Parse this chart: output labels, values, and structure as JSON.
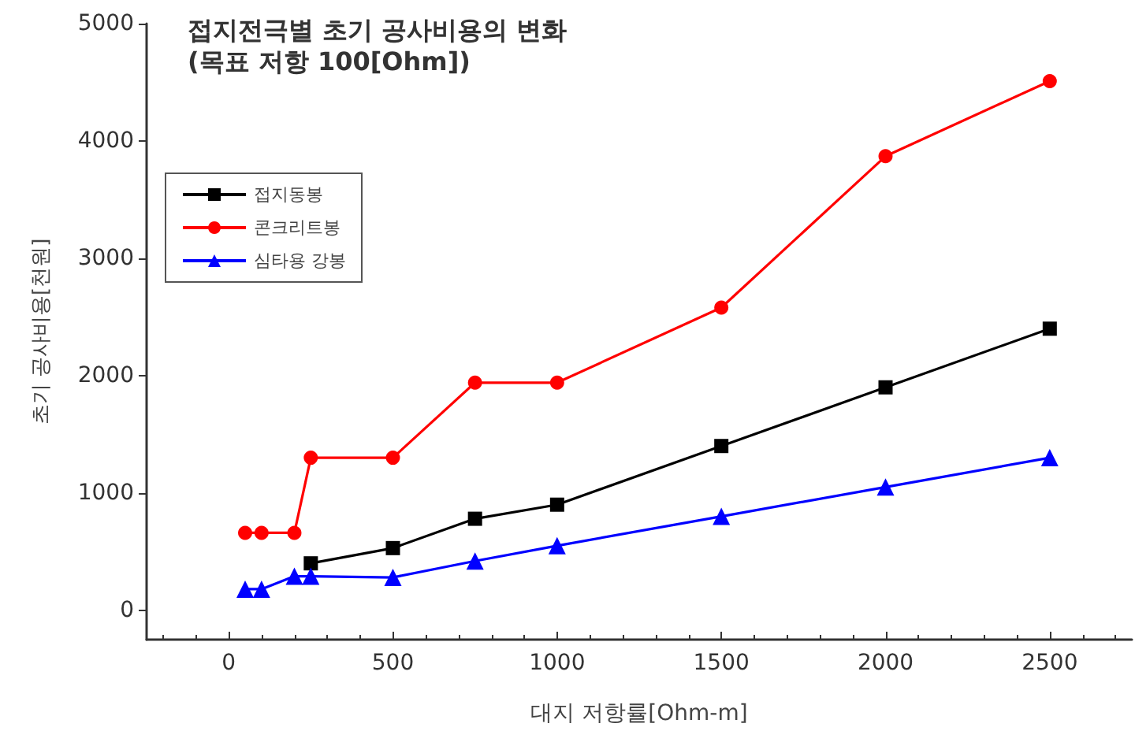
{
  "chart_data": {
    "type": "line",
    "title": "접지전극별 초기 공사비용의 변화",
    "subtitle": "(목표 저항 100[Ohm])",
    "xlabel": "대지 저항률[Ohm-m]",
    "ylabel": "초기 공사비용[천원]",
    "xlim": [
      -250,
      2750
    ],
    "ylim": [
      -250,
      5000
    ],
    "xticks": [
      0,
      500,
      1000,
      1500,
      2000,
      2500
    ],
    "yticks": [
      0,
      1000,
      2000,
      3000,
      4000,
      5000
    ],
    "series": [
      {
        "name": "접지동봉",
        "color": "#000000",
        "marker": "square",
        "x": [
          250,
          500,
          750,
          1000,
          1500,
          2000,
          2500
        ],
        "values": [
          400,
          530,
          780,
          900,
          1400,
          1900,
          2400
        ]
      },
      {
        "name": "콘크리트봉",
        "color": "#ff0000",
        "marker": "circle",
        "x": [
          50,
          100,
          200,
          250,
          500,
          750,
          1000,
          1500,
          2000,
          2500
        ],
        "values": [
          660,
          660,
          660,
          1300,
          1300,
          1940,
          1940,
          2580,
          3870,
          4510
        ]
      },
      {
        "name": "심타용 강봉",
        "color": "#0000ff",
        "marker": "triangle",
        "x": [
          50,
          100,
          200,
          250,
          500,
          750,
          1000,
          1500,
          2000,
          2500
        ],
        "values": [
          180,
          180,
          290,
          290,
          280,
          420,
          550,
          800,
          1050,
          1300
        ]
      }
    ],
    "legend": "top left",
    "grid": false,
    "line_style": "solid"
  }
}
